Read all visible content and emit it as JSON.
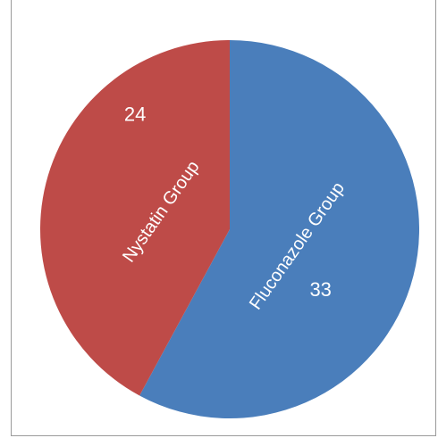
{
  "chart_data": {
    "type": "pie",
    "title": "",
    "legend": "none",
    "start_angle_deg": 0,
    "direction": "clockwise",
    "slices": [
      {
        "label": "Fluconazole Group",
        "value": 33,
        "color": "#4a7ebb"
      },
      {
        "label": "Nystatin Group",
        "value": 24,
        "color": "#be4b48"
      }
    ]
  }
}
